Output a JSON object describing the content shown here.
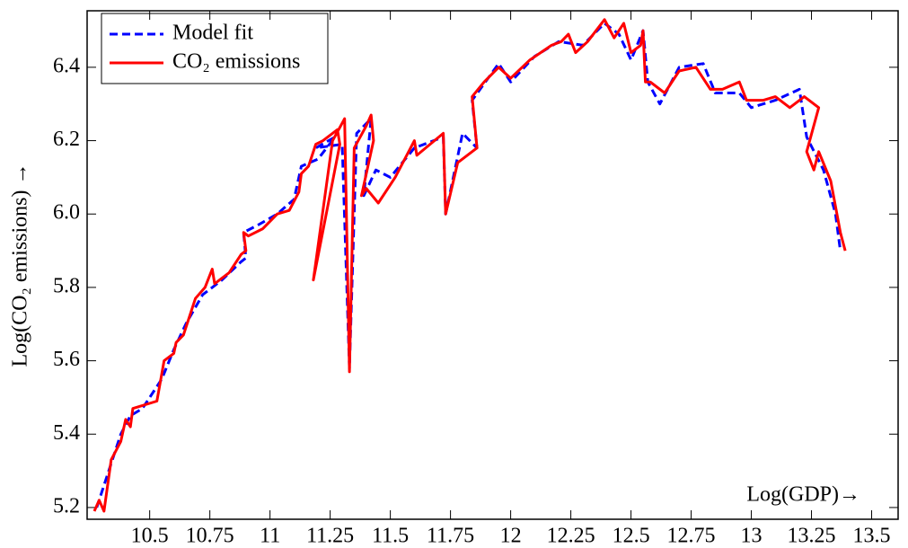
{
  "chart_data": {
    "type": "line",
    "xlabel": "Log(GDP)→",
    "ylabel": "Log(CO₂ emissions) →",
    "xlim": [
      10.24,
      13.61
    ],
    "ylim": [
      5.168,
      6.554
    ],
    "xticks": [
      10.5,
      10.75,
      11,
      11.25,
      11.5,
      11.75,
      12,
      12.25,
      12.5,
      12.75,
      13,
      13.25,
      13.5
    ],
    "yticks": [
      5.2,
      5.4,
      5.6,
      5.8,
      {
        "value": 6,
        "label": "6.0"
      },
      6.2,
      6.4
    ],
    "legend": "upper left",
    "series": [
      {
        "name": "Model fit",
        "color": "#0000ff",
        "dashed": true,
        "x": [
          10.28,
          10.33,
          10.38,
          10.42,
          10.47,
          10.55,
          10.6,
          10.65,
          10.72,
          10.8,
          10.88,
          10.9,
          10.89,
          10.95,
          11.03,
          11.1,
          11.13,
          11.2,
          11.27,
          11.19,
          11.3,
          11.33,
          11.36,
          11.42,
          11.39,
          11.44,
          11.5,
          11.6,
          11.72,
          11.73,
          11.8,
          11.86,
          11.84,
          11.95,
          12.0,
          12.1,
          12.2,
          12.3,
          12.39,
          12.45,
          12.5,
          12.55,
          12.57,
          12.62,
          12.7,
          12.8,
          12.85,
          12.95,
          13.0,
          13.1,
          13.2,
          13.23,
          13.3,
          13.35,
          13.37
        ],
        "values": [
          5.2,
          5.3,
          5.4,
          5.45,
          5.47,
          5.55,
          5.63,
          5.7,
          5.78,
          5.82,
          5.87,
          5.88,
          5.95,
          5.97,
          6.0,
          6.04,
          6.13,
          6.15,
          6.21,
          6.18,
          6.19,
          5.58,
          6.22,
          6.26,
          6.05,
          6.12,
          6.1,
          6.18,
          6.21,
          6.0,
          6.22,
          6.18,
          6.31,
          6.41,
          6.36,
          6.43,
          6.47,
          6.46,
          6.52,
          6.49,
          6.42,
          6.5,
          6.36,
          6.3,
          6.4,
          6.41,
          6.33,
          6.33,
          6.29,
          6.31,
          6.34,
          6.21,
          6.12,
          6.0,
          5.9
        ]
      },
      {
        "name": "CO₂ emissions",
        "color": "#ff0000",
        "dashed": false,
        "x": [
          10.27,
          10.29,
          10.31,
          10.34,
          10.38,
          10.4,
          10.42,
          10.43,
          10.53,
          10.56,
          10.6,
          10.61,
          10.64,
          10.69,
          10.73,
          10.76,
          10.77,
          10.83,
          10.88,
          10.9,
          10.89,
          10.91,
          10.97,
          11.03,
          11.08,
          11.12,
          11.13,
          11.16,
          11.19,
          11.22,
          11.28,
          11.29,
          11.18,
          11.26,
          11.31,
          11.33,
          11.35,
          11.4,
          11.42,
          11.43,
          11.38,
          11.4,
          11.45,
          11.52,
          11.6,
          11.61,
          11.72,
          11.73,
          11.78,
          11.86,
          11.84,
          11.89,
          11.95,
          12.0,
          12.08,
          12.17,
          12.21,
          12.24,
          12.27,
          12.32,
          12.39,
          12.43,
          12.47,
          12.5,
          12.54,
          12.55,
          12.56,
          12.58,
          12.64,
          12.7,
          12.77,
          12.83,
          12.88,
          12.95,
          12.98,
          13.05,
          13.1,
          13.16,
          13.22,
          13.28,
          13.23,
          13.26,
          13.28,
          13.33,
          13.37,
          13.39
        ],
        "values": [
          5.19,
          5.22,
          5.19,
          5.33,
          5.38,
          5.44,
          5.42,
          5.47,
          5.49,
          5.6,
          5.62,
          5.65,
          5.67,
          5.77,
          5.8,
          5.85,
          5.81,
          5.84,
          5.89,
          5.9,
          5.95,
          5.94,
          5.96,
          6.0,
          6.01,
          6.06,
          6.11,
          6.13,
          6.19,
          6.2,
          6.23,
          6.19,
          5.82,
          6.2,
          6.26,
          5.57,
          6.18,
          6.24,
          6.27,
          6.2,
          6.05,
          6.07,
          6.03,
          6.1,
          6.2,
          6.16,
          6.22,
          6.0,
          6.14,
          6.18,
          6.32,
          6.36,
          6.4,
          6.37,
          6.42,
          6.46,
          6.47,
          6.49,
          6.44,
          6.47,
          6.53,
          6.48,
          6.52,
          6.44,
          6.46,
          6.5,
          6.36,
          6.36,
          6.33,
          6.39,
          6.4,
          6.34,
          6.34,
          6.36,
          6.31,
          6.31,
          6.32,
          6.29,
          6.32,
          6.29,
          6.17,
          6.12,
          6.17,
          6.09,
          5.95,
          5.9
        ]
      }
    ]
  }
}
